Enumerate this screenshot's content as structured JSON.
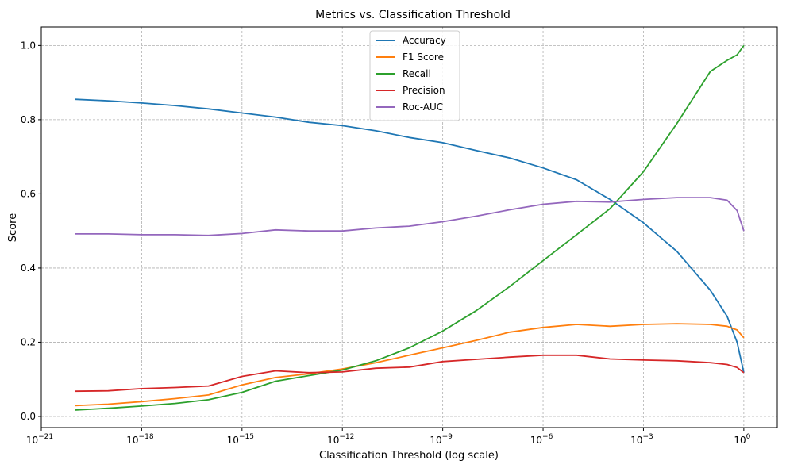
{
  "chart_data": {
    "type": "line",
    "title": "Metrics vs. Classification Threshold",
    "xlabel": "Classification Threshold (log scale)",
    "ylabel": "Score",
    "x_scale": "log10",
    "xlim_exponent": [
      -21,
      1
    ],
    "ylim": [
      -0.03,
      1.05
    ],
    "grid": true,
    "legend_position": "top-center",
    "x_ticks": [
      {
        "exp": -21,
        "base": "10",
        "sup": "−21"
      },
      {
        "exp": -18,
        "base": "10",
        "sup": "−18"
      },
      {
        "exp": -15,
        "base": "10",
        "sup": "−15"
      },
      {
        "exp": -12,
        "base": "10",
        "sup": "−12"
      },
      {
        "exp": -9,
        "base": "10",
        "sup": "−9"
      },
      {
        "exp": -6,
        "base": "10",
        "sup": "−6"
      },
      {
        "exp": -3,
        "base": "10",
        "sup": "−3"
      },
      {
        "exp": 0,
        "base": "10",
        "sup": "0"
      }
    ],
    "y_ticks": [
      {
        "value": 0.0,
        "label": "0.0"
      },
      {
        "value": 0.2,
        "label": "0.2"
      },
      {
        "value": 0.4,
        "label": "0.4"
      },
      {
        "value": 0.6,
        "label": "0.6"
      },
      {
        "value": 0.8,
        "label": "0.8"
      },
      {
        "value": 1.0,
        "label": "1.0"
      }
    ],
    "x_exponents": [
      -20,
      -19,
      -18,
      -17,
      -16,
      -15,
      -14,
      -13,
      -12,
      -11,
      -10,
      -9,
      -8,
      -7,
      -6,
      -5,
      -4,
      -3,
      -2,
      -1,
      -0.5,
      -0.2,
      0
    ],
    "series": [
      {
        "name": "Accuracy",
        "color": "#1f77b4",
        "values": [
          0.855,
          0.851,
          0.845,
          0.838,
          0.829,
          0.818,
          0.807,
          0.793,
          0.784,
          0.77,
          0.752,
          0.738,
          0.717,
          0.697,
          0.67,
          0.638,
          0.585,
          0.522,
          0.445,
          0.34,
          0.27,
          0.2,
          0.118
        ]
      },
      {
        "name": "F1 Score",
        "color": "#ff7f0e",
        "values": [
          0.029,
          0.033,
          0.04,
          0.048,
          0.058,
          0.085,
          0.105,
          0.115,
          0.128,
          0.145,
          0.165,
          0.185,
          0.205,
          0.227,
          0.24,
          0.248,
          0.243,
          0.248,
          0.25,
          0.248,
          0.243,
          0.233,
          0.212
        ]
      },
      {
        "name": "Recall",
        "color": "#2ca02c",
        "values": [
          0.017,
          0.022,
          0.028,
          0.035,
          0.045,
          0.065,
          0.095,
          0.11,
          0.125,
          0.15,
          0.185,
          0.23,
          0.285,
          0.35,
          0.42,
          0.49,
          0.56,
          0.66,
          0.79,
          0.93,
          0.96,
          0.975,
          1.0
        ]
      },
      {
        "name": "Precision",
        "color": "#d62728",
        "values": [
          0.068,
          0.069,
          0.075,
          0.078,
          0.082,
          0.108,
          0.123,
          0.118,
          0.12,
          0.13,
          0.133,
          0.148,
          0.154,
          0.16,
          0.165,
          0.165,
          0.155,
          0.152,
          0.15,
          0.145,
          0.14,
          0.132,
          0.118
        ]
      },
      {
        "name": "Roc-AUC",
        "color": "#9467bd",
        "values": [
          0.492,
          0.492,
          0.49,
          0.49,
          0.488,
          0.493,
          0.503,
          0.5,
          0.5,
          0.508,
          0.513,
          0.525,
          0.54,
          0.557,
          0.572,
          0.58,
          0.578,
          0.585,
          0.59,
          0.59,
          0.583,
          0.555,
          0.5
        ]
      }
    ]
  }
}
